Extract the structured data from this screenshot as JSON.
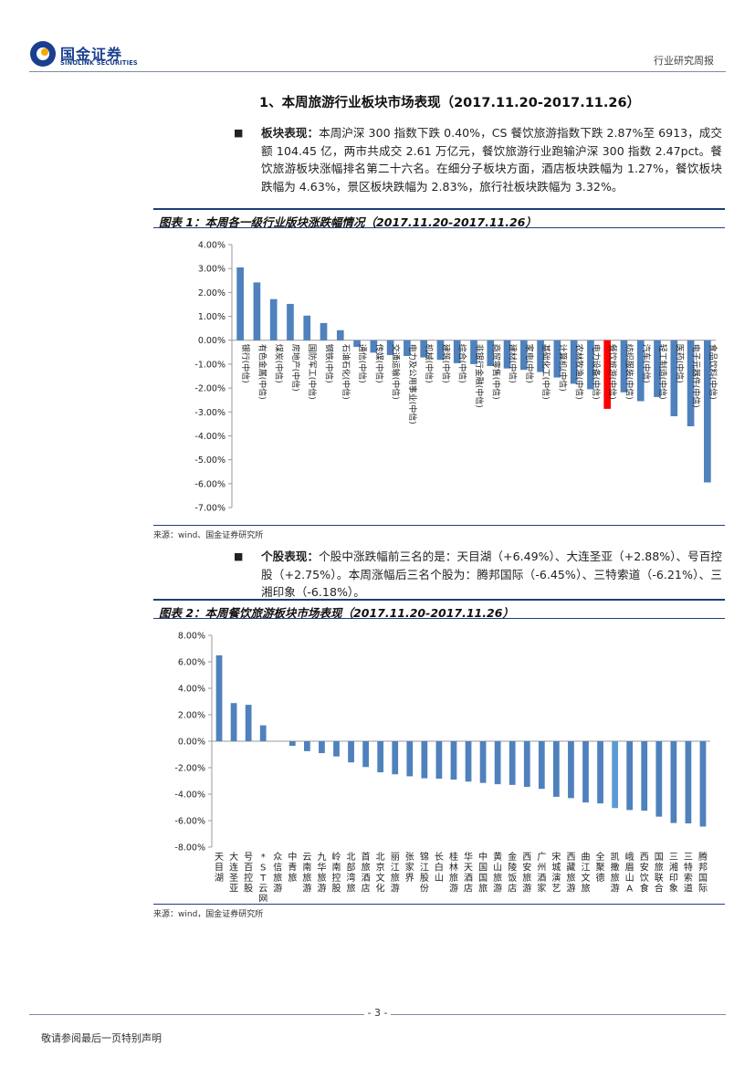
{
  "header": {
    "logo_cn": "国金证券",
    "logo_en": "SINOLINK SECURITIES",
    "report_type": "行业研究周报"
  },
  "section": {
    "title": "1、本周旅游行业板块市场表现（2017.11.20-2017.11.26）"
  },
  "para1": {
    "bullet": "■",
    "lead": "板块表现：",
    "text": "本周沪深 300 指数下跌 0.40%，CS 餐饮旅游指数下跌 2.87%至 6913，成交额 104.45 亿，两市共成交 2.61 万亿元，餐饮旅游行业跑输沪深 300 指数 2.47pct。餐饮旅游板块涨幅排名第二十六名。在细分子板块方面，酒店板块跌幅为 1.27%，餐饮板块跌幅为 4.63%，景区板块跌幅为 2.83%，旅行社板块跌幅为 3.32%。"
  },
  "fig1": {
    "title": "图表 1：本周各一级行业版块涨跌幅情况（2017.11.20-2017.11.26）",
    "source": "来源：wind、国金证券研究所"
  },
  "para2": {
    "bullet": "■",
    "lead": "个股表现：",
    "text": "个股中涨跌幅前三名的是：天目湖（+6.49%）、大连圣亚（+2.88%）、号百控股（+2.75%）。本周涨幅后三名个股为：腾邦国际（-6.45%）、三特索道（-6.21%）、三湘印象（-6.18%）。"
  },
  "fig2": {
    "title": "图表 2：本周餐饮旅游板块市场表现（2017.11.20-2017.11.26）",
    "source": "来源：wind，国金证券研究所"
  },
  "footer": {
    "page": "- 3 -",
    "note": "敬请参阅最后一页特别声明"
  },
  "colors": {
    "bar": "#4f81bd",
    "highlight": "#ff0000",
    "highlight2": "#5b9bd5",
    "brand": "#1a3f8f"
  },
  "chart_data": [
    {
      "type": "bar",
      "ylim": [
        -7,
        4
      ],
      "ytick_step": 1,
      "ytick_labels": [
        "4.00%",
        "3.00%",
        "2.00%",
        "1.00%",
        "0.00%",
        "-1.00%",
        "-2.00%",
        "-3.00%",
        "-4.00%",
        "-5.00%",
        "-6.00%",
        "-7.00%"
      ],
      "highlight_index": 22,
      "categories": [
        "银行(中信)",
        "有色金属(中信)",
        "煤炭(中信)",
        "房地产(中信)",
        "国防军工(中信)",
        "钢铁(中信)",
        "石油石化(中信)",
        "通信(中信)",
        "传媒(中信)",
        "交通运输(中信)",
        "电力及公用事业(中信)",
        "机械(中信)",
        "建筑(中信)",
        "综合(中信)",
        "非银行金融(中信)",
        "商贸零售(中信)",
        "建材(中信)",
        "家电(中信)",
        "基础化工(中信)",
        "计算机(中信)",
        "农林牧渔(中信)",
        "电力设备(中信)",
        "餐饮旅游(中信)",
        "纺织服装(中信)",
        "汽车(中信)",
        "轻工制造(中信)",
        "医药(中信)",
        "电子元器件(中信)",
        "食品饮料(中信)"
      ],
      "values": [
        3.05,
        2.42,
        1.72,
        1.52,
        1.03,
        0.72,
        0.42,
        -0.28,
        -0.52,
        -0.62,
        -0.66,
        -0.72,
        -0.82,
        -0.96,
        -1.0,
        -1.08,
        -1.18,
        -1.24,
        -1.33,
        -1.56,
        -1.82,
        -2.05,
        -2.87,
        -2.18,
        -2.55,
        -2.38,
        -3.18,
        -3.6,
        -5.95
      ]
    },
    {
      "type": "bar",
      "ylim": [
        -8,
        8
      ],
      "ytick_step": 2,
      "ytick_labels": [
        "8.00%",
        "6.00%",
        "4.00%",
        "2.00%",
        "0.00%",
        "-2.00%",
        "-4.00%",
        "-6.00%",
        "-8.00%"
      ],
      "highlight_index": 27,
      "categories": [
        "天目湖",
        "大连圣亚",
        "号百控股",
        "*ST云网",
        "众信旅游",
        "中青旅",
        "云南旅游",
        "九华旅游",
        "岭南控股",
        "北部湾旅",
        "首旅酒店",
        "北京文化",
        "丽江旅游",
        "张家界",
        "锦江股份",
        "长白山",
        "桂林旅游",
        "华天酒店",
        "中国国旅",
        "黄山旅游",
        "金陵饭店",
        "西安旅游",
        "广州酒家",
        "宋城演艺",
        "西藏旅游",
        "曲江文旅",
        "全聚德",
        "凯撒旅游",
        "峨眉山A",
        "西安饮食",
        "国旅联合",
        "三湘印象",
        "三特索道",
        "腾邦国际"
      ],
      "values": [
        6.49,
        2.88,
        2.75,
        1.2,
        0.0,
        -0.35,
        -0.75,
        -0.9,
        -1.15,
        -1.6,
        -1.95,
        -2.35,
        -2.5,
        -2.65,
        -2.8,
        -2.83,
        -2.9,
        -3.05,
        -3.15,
        -3.25,
        -3.3,
        -3.45,
        -3.6,
        -4.2,
        -4.3,
        -4.63,
        -4.7,
        -5.05,
        -5.2,
        -5.25,
        -5.7,
        -6.18,
        -6.21,
        -6.45
      ]
    }
  ]
}
